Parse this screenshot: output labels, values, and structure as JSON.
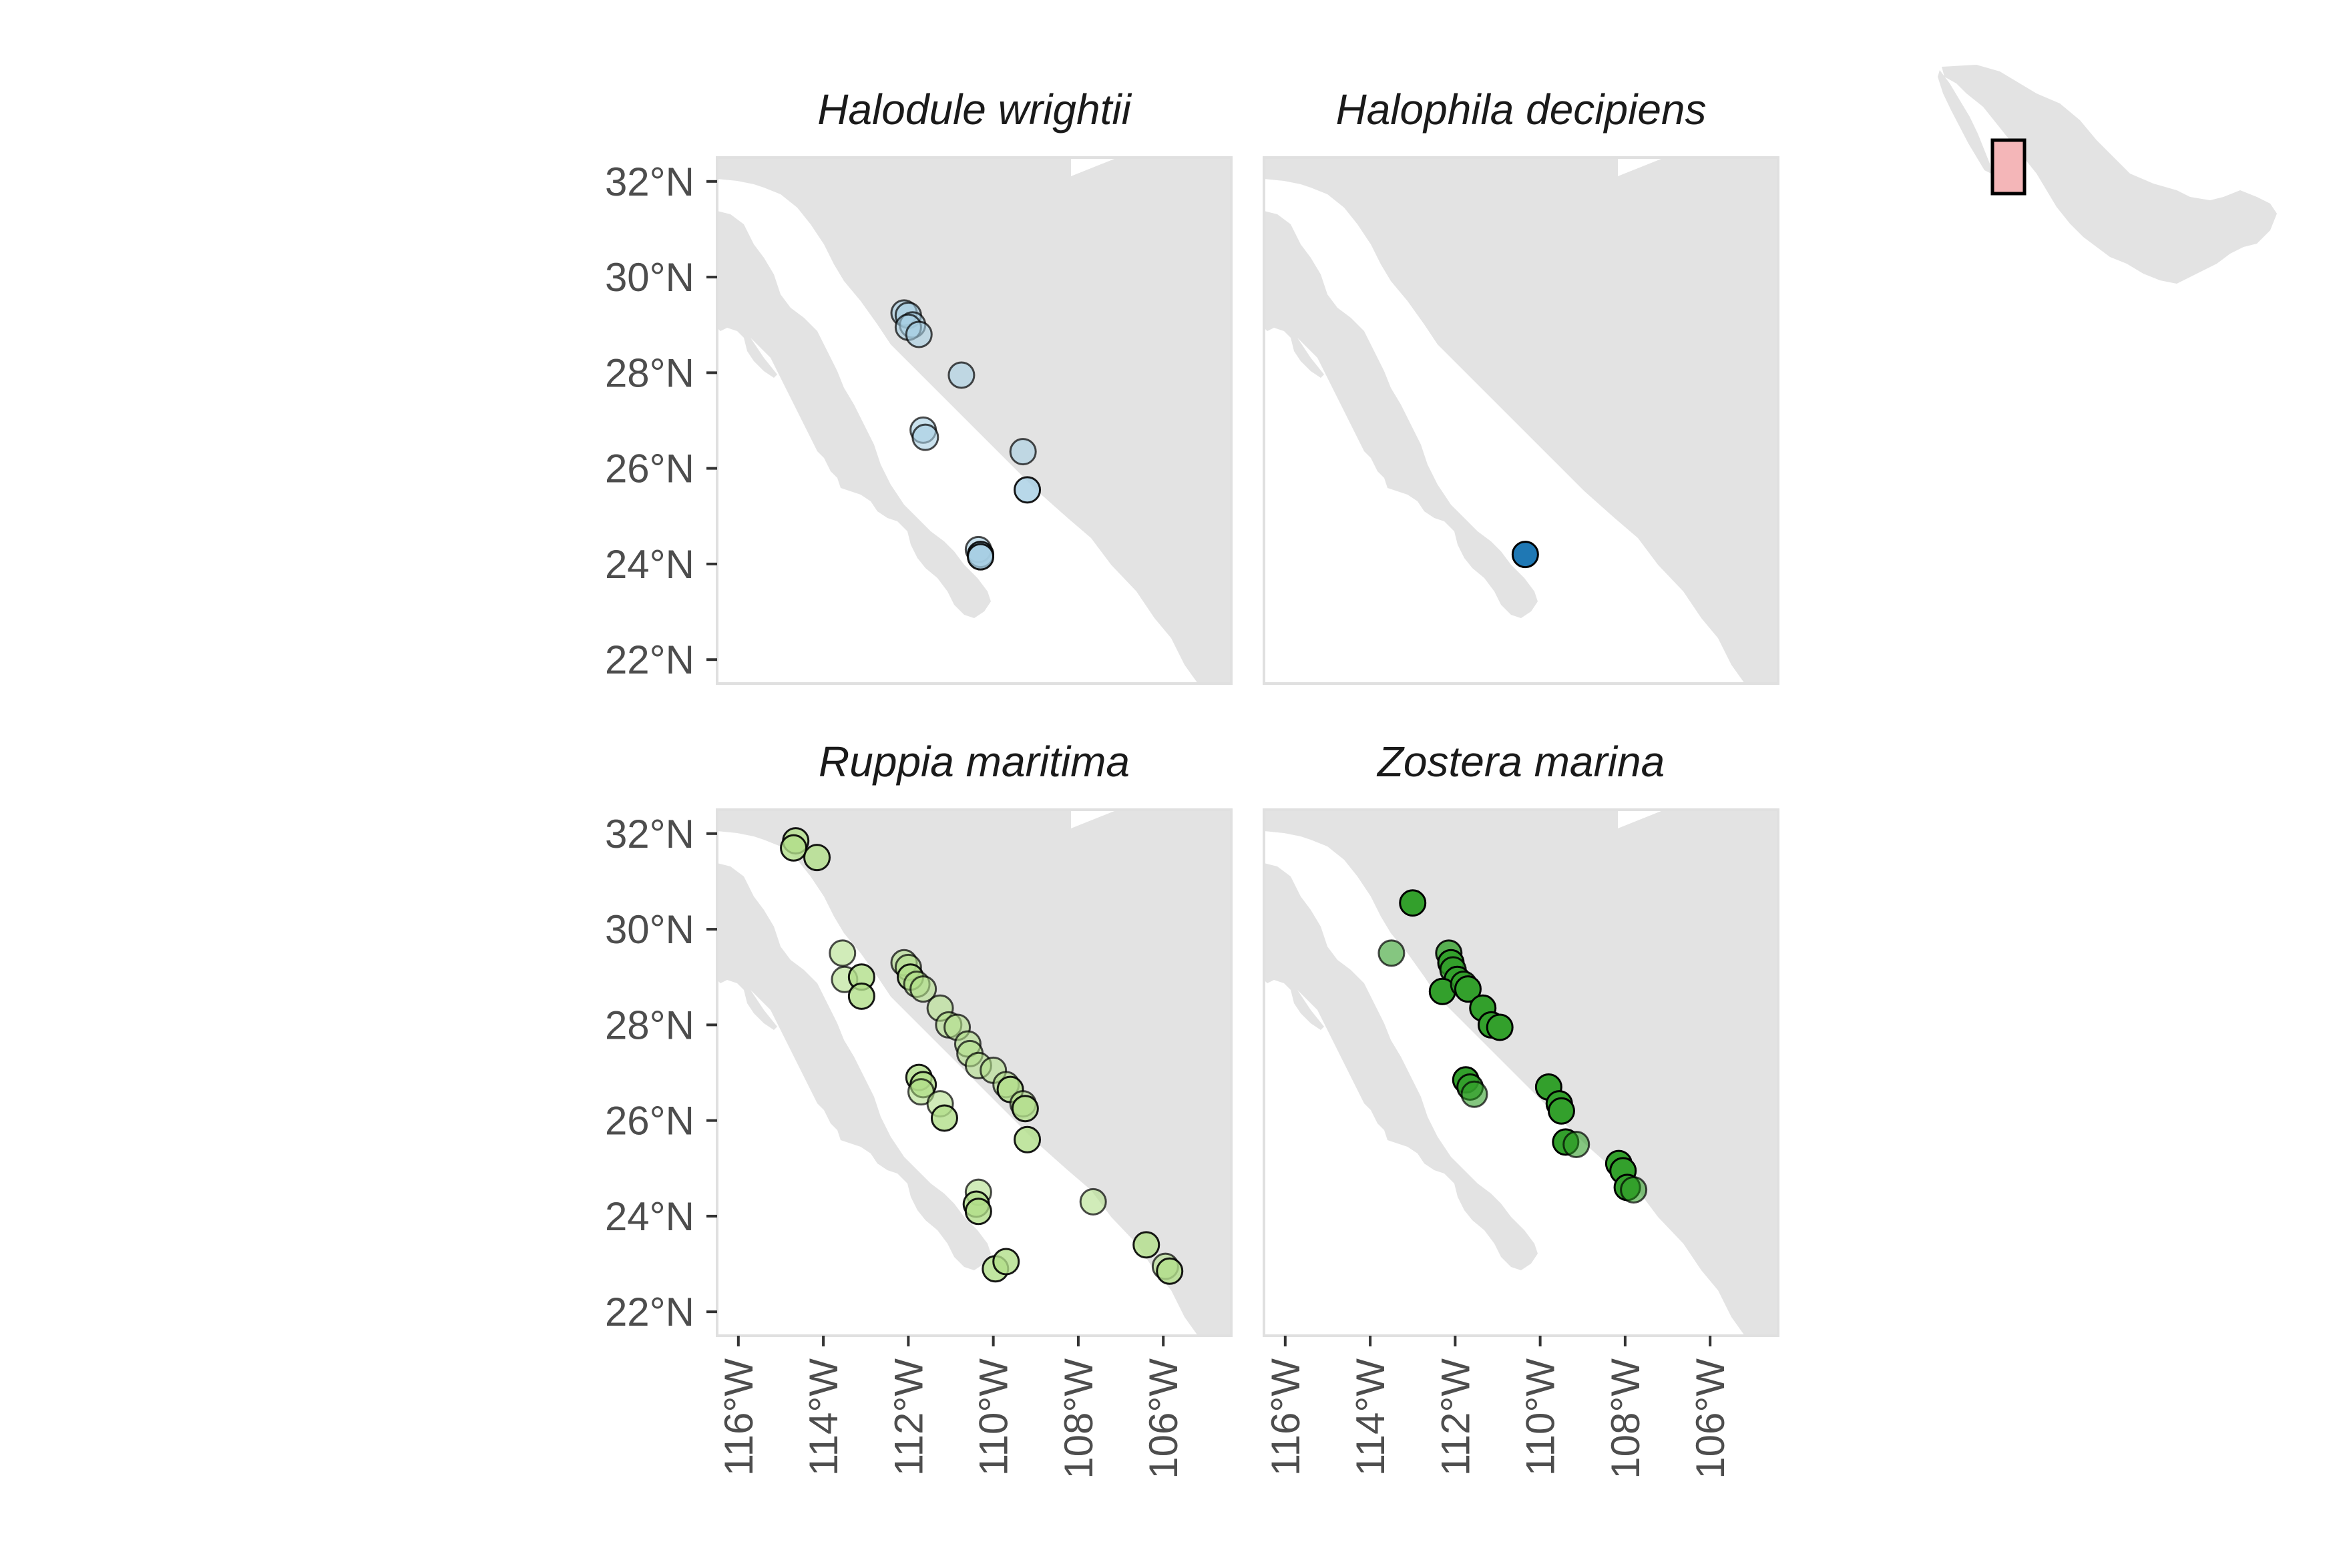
{
  "facets": [
    {
      "title": "Halodule wrightii",
      "color": "#a6cee3",
      "points": [
        {
          "lon": -112.1,
          "lat": 29.25,
          "alpha": 0.6
        },
        {
          "lon": -112.0,
          "lat": 29.2,
          "alpha": 0.6
        },
        {
          "lon": -111.9,
          "lat": 29.0,
          "alpha": 0.6
        },
        {
          "lon": -112.0,
          "lat": 28.95,
          "alpha": 0.6
        },
        {
          "lon": -111.75,
          "lat": 28.8,
          "alpha": 0.6
        },
        {
          "lon": -110.75,
          "lat": 27.95,
          "alpha": 0.6
        },
        {
          "lon": -111.65,
          "lat": 26.8,
          "alpha": 0.6
        },
        {
          "lon": -111.6,
          "lat": 26.65,
          "alpha": 0.6
        },
        {
          "lon": -109.3,
          "lat": 26.35,
          "alpha": 0.6
        },
        {
          "lon": -109.2,
          "lat": 25.55,
          "alpha": 0.8
        },
        {
          "lon": -110.35,
          "lat": 24.3,
          "alpha": 0.6
        },
        {
          "lon": -110.3,
          "lat": 24.2,
          "alpha": 0.8
        },
        {
          "lon": -110.3,
          "lat": 24.15,
          "alpha": 0.8
        }
      ]
    },
    {
      "title": "Halophila decipiens",
      "color": "#1f78b4",
      "points": [
        {
          "lon": -110.35,
          "lat": 24.2,
          "alpha": 1.0
        }
      ]
    },
    {
      "title": "Ruppia maritima",
      "color": "#b2df8a",
      "points": [
        {
          "lon": -114.65,
          "lat": 31.85,
          "alpha": 0.8
        },
        {
          "lon": -114.7,
          "lat": 31.7,
          "alpha": 0.8
        },
        {
          "lon": -114.15,
          "lat": 31.5,
          "alpha": 0.8
        },
        {
          "lon": -113.55,
          "lat": 29.5,
          "alpha": 0.6
        },
        {
          "lon": -113.5,
          "lat": 28.95,
          "alpha": 0.6
        },
        {
          "lon": -113.1,
          "lat": 29.0,
          "alpha": 0.8
        },
        {
          "lon": -113.1,
          "lat": 28.6,
          "alpha": 0.8
        },
        {
          "lon": -112.1,
          "lat": 29.3,
          "alpha": 0.6
        },
        {
          "lon": -112.0,
          "lat": 29.2,
          "alpha": 0.6
        },
        {
          "lon": -111.95,
          "lat": 29.0,
          "alpha": 0.8
        },
        {
          "lon": -111.8,
          "lat": 28.85,
          "alpha": 0.6
        },
        {
          "lon": -111.65,
          "lat": 28.75,
          "alpha": 0.6
        },
        {
          "lon": -111.25,
          "lat": 28.35,
          "alpha": 0.6
        },
        {
          "lon": -111.05,
          "lat": 28.0,
          "alpha": 0.6
        },
        {
          "lon": -110.85,
          "lat": 27.95,
          "alpha": 0.6
        },
        {
          "lon": -110.6,
          "lat": 27.6,
          "alpha": 0.6
        },
        {
          "lon": -110.55,
          "lat": 27.4,
          "alpha": 0.6
        },
        {
          "lon": -110.35,
          "lat": 27.15,
          "alpha": 0.6
        },
        {
          "lon": -110.0,
          "lat": 27.05,
          "alpha": 0.6
        },
        {
          "lon": -109.7,
          "lat": 26.75,
          "alpha": 0.6
        },
        {
          "lon": -109.6,
          "lat": 26.65,
          "alpha": 0.8
        },
        {
          "lon": -109.3,
          "lat": 26.35,
          "alpha": 0.6
        },
        {
          "lon": -109.25,
          "lat": 26.25,
          "alpha": 0.8
        },
        {
          "lon": -109.2,
          "lat": 25.6,
          "alpha": 0.8
        },
        {
          "lon": -111.75,
          "lat": 26.9,
          "alpha": 0.8
        },
        {
          "lon": -111.65,
          "lat": 26.75,
          "alpha": 0.8
        },
        {
          "lon": -111.7,
          "lat": 26.6,
          "alpha": 0.6
        },
        {
          "lon": -111.25,
          "lat": 26.35,
          "alpha": 0.6
        },
        {
          "lon": -111.15,
          "lat": 26.05,
          "alpha": 0.8
        },
        {
          "lon": -110.35,
          "lat": 24.5,
          "alpha": 0.6
        },
        {
          "lon": -110.4,
          "lat": 24.25,
          "alpha": 0.8
        },
        {
          "lon": -110.35,
          "lat": 24.1,
          "alpha": 0.8
        },
        {
          "lon": -107.65,
          "lat": 24.3,
          "alpha": 0.6
        },
        {
          "lon": -109.95,
          "lat": 22.9,
          "alpha": 0.8
        },
        {
          "lon": -109.7,
          "lat": 23.05,
          "alpha": 0.8
        },
        {
          "lon": -106.4,
          "lat": 23.4,
          "alpha": 0.8
        },
        {
          "lon": -105.95,
          "lat": 22.95,
          "alpha": 0.6
        },
        {
          "lon": -105.85,
          "lat": 22.85,
          "alpha": 0.8
        }
      ]
    },
    {
      "title": "Zostera marina",
      "color": "#33a02c",
      "points": [
        {
          "lon": -113.0,
          "lat": 30.55,
          "alpha": 1.0
        },
        {
          "lon": -113.5,
          "lat": 29.5,
          "alpha": 0.6
        },
        {
          "lon": -112.15,
          "lat": 29.5,
          "alpha": 0.8
        },
        {
          "lon": -112.1,
          "lat": 29.3,
          "alpha": 1.0
        },
        {
          "lon": -112.05,
          "lat": 29.15,
          "alpha": 0.8
        },
        {
          "lon": -111.95,
          "lat": 28.95,
          "alpha": 1.0
        },
        {
          "lon": -112.3,
          "lat": 28.7,
          "alpha": 1.0
        },
        {
          "lon": -111.8,
          "lat": 28.85,
          "alpha": 0.8
        },
        {
          "lon": -111.7,
          "lat": 28.75,
          "alpha": 1.0
        },
        {
          "lon": -111.35,
          "lat": 28.35,
          "alpha": 1.0
        },
        {
          "lon": -111.15,
          "lat": 28.0,
          "alpha": 1.0
        },
        {
          "lon": -110.95,
          "lat": 27.95,
          "alpha": 1.0
        },
        {
          "lon": -111.75,
          "lat": 26.85,
          "alpha": 1.0
        },
        {
          "lon": -111.65,
          "lat": 26.7,
          "alpha": 0.8
        },
        {
          "lon": -111.55,
          "lat": 26.55,
          "alpha": 0.6
        },
        {
          "lon": -109.8,
          "lat": 26.7,
          "alpha": 1.0
        },
        {
          "lon": -109.55,
          "lat": 26.35,
          "alpha": 1.0
        },
        {
          "lon": -109.5,
          "lat": 26.2,
          "alpha": 1.0
        },
        {
          "lon": -109.4,
          "lat": 25.55,
          "alpha": 1.0
        },
        {
          "lon": -109.15,
          "lat": 25.5,
          "alpha": 0.6
        },
        {
          "lon": -108.15,
          "lat": 25.1,
          "alpha": 1.0
        },
        {
          "lon": -108.05,
          "lat": 24.95,
          "alpha": 1.0
        },
        {
          "lon": -107.95,
          "lat": 24.6,
          "alpha": 1.0
        },
        {
          "lon": -107.8,
          "lat": 24.55,
          "alpha": 0.6
        }
      ]
    }
  ],
  "axes": {
    "y_ticks": [
      {
        "value": 32,
        "label": "32°N"
      },
      {
        "value": 30,
        "label": "30°N"
      },
      {
        "value": 28,
        "label": "28°N"
      },
      {
        "value": 26,
        "label": "26°N"
      },
      {
        "value": 24,
        "label": "24°N"
      },
      {
        "value": 22,
        "label": "22°N"
      }
    ],
    "x_ticks": [
      {
        "value": -116,
        "label": "116°W"
      },
      {
        "value": -114,
        "label": "114°W"
      },
      {
        "value": -112,
        "label": "112°W"
      },
      {
        "value": -110,
        "label": "110°W"
      },
      {
        "value": -108,
        "label": "108°W"
      },
      {
        "value": -106,
        "label": "106°W"
      }
    ],
    "lon_range": [
      -116.5,
      -104.4
    ],
    "lat_range": [
      21.5,
      32.5
    ]
  },
  "inset": {
    "description_icon": "mexico-inset-map",
    "highlight_color": "#f4b6b8"
  },
  "colors": {
    "land": "#e3e3e3",
    "sea": "#ffffff",
    "panel_border": "#e0e0e0",
    "point_stroke": "#000000"
  }
}
